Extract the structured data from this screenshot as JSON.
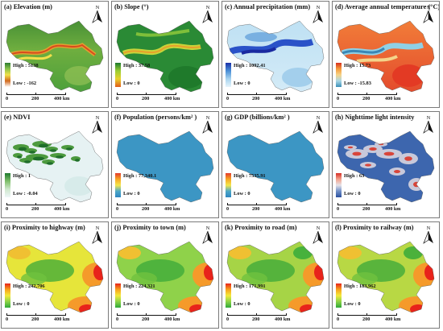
{
  "figure": {
    "panels": [
      {
        "id": "a",
        "title": "(a) Elevation (m)",
        "high": "High : 5138",
        "low": "Low : -162",
        "ramp": [
          "#2e7d32",
          "#8bc34a",
          "#f1e24b",
          "#d2691e",
          "#ffffff"
        ],
        "scheme": "elev"
      },
      {
        "id": "b",
        "title": "(b) Slope (°)",
        "high": "High : 37.58",
        "low": "Low : 0",
        "ramp": [
          "#1b7a2e",
          "#9acd32",
          "#e8d22c",
          "#e05a1a"
        ],
        "scheme": "slope"
      },
      {
        "id": "c",
        "title": "(c) Annual precipitation (mm)",
        "high": "High : 1092.41",
        "low": "Low : 0",
        "ramp": [
          "#1a2fa8",
          "#4a8fd6",
          "#a8d4ef",
          "#e6f4fb"
        ],
        "scheme": "precip"
      },
      {
        "id": "d",
        "title": "(d) Average annual temperature (°C)",
        "high": "High : 15.73",
        "low": "Low : -15.83",
        "ramp": [
          "#d7301f",
          "#f59a3a",
          "#f6d488",
          "#a9d6e5",
          "#3a8fb7"
        ],
        "scheme": "temp"
      },
      {
        "id": "e",
        "title": "(e) NDVI",
        "high": "High : 1",
        "low": "Low : -0.04",
        "ramp": [
          "#1f7a2e",
          "#7fbf6a",
          "#cfe8cd",
          "#eef6f8"
        ],
        "scheme": "ndvi"
      },
      {
        "id": "f",
        "title": "(f) Population (persons/km² )",
        "high": "High : 77,340.1",
        "low": "Low : 0",
        "ramp": [
          "#e53b2c",
          "#f6a623",
          "#f4e64b",
          "#4ca7c7",
          "#2e86c1"
        ],
        "scheme": "pop"
      },
      {
        "id": "g",
        "title": "(g) GDP (billions/km² )",
        "high": "High : 7535.91",
        "low": "Low : 0",
        "ramp": [
          "#e53b2c",
          "#f6a623",
          "#f4e64b",
          "#4ca7c7",
          "#2e86c1"
        ],
        "scheme": "pop"
      },
      {
        "id": "h",
        "title": "(h) Nighttime light intensity",
        "high": "High : 63",
        "low": "Low : 0",
        "ramp": [
          "#d62f27",
          "#f3a28c",
          "#e6e2e8",
          "#6f8fc7",
          "#2b4f9e"
        ],
        "scheme": "night"
      },
      {
        "id": "i",
        "title": "(i) Proximity to highway (m)",
        "high": "High : 242,706",
        "low": "Low : 0",
        "ramp": [
          "#e8231b",
          "#f7a21b",
          "#f4e93b",
          "#8bd346",
          "#2fa83a"
        ],
        "scheme": "prox1"
      },
      {
        "id": "j",
        "title": "(j) Proximity to town (m)",
        "high": "High : 224,321",
        "low": "Low : 0",
        "ramp": [
          "#e8231b",
          "#f7a21b",
          "#f4e93b",
          "#8bd346",
          "#2fa83a"
        ],
        "scheme": "prox2"
      },
      {
        "id": "k",
        "title": "(k) Proximity to road (m)",
        "high": "High : 171,991",
        "low": "Low : 0",
        "ramp": [
          "#e8231b",
          "#f7a21b",
          "#f4e93b",
          "#8bd346",
          "#2fa83a"
        ],
        "scheme": "prox3"
      },
      {
        "id": "l",
        "title": "(l) Proximity to railway (m)",
        "high": "High : 183,962",
        "low": "Low : 0",
        "ramp": [
          "#e8231b",
          "#f7a21b",
          "#f4e93b",
          "#8bd346",
          "#2fa83a"
        ],
        "scheme": "prox4"
      }
    ],
    "north_label": "N",
    "scale_labels": [
      "0",
      "200",
      "400 km"
    ]
  }
}
